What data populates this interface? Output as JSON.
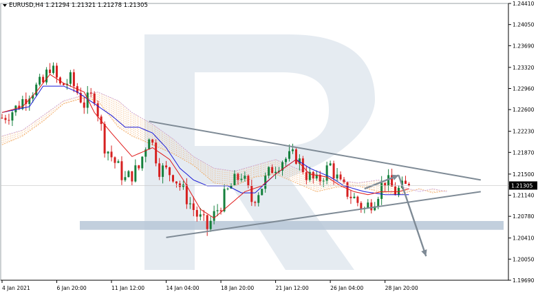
{
  "header": {
    "symbol": "EURUSD,H4",
    "ohlc": "1.21294 1.21321 1.21278 1.21305"
  },
  "chart_data": {
    "type": "candlestick",
    "symbol": "EURUSD",
    "timeframe": "H4",
    "price_axis": {
      "min": 1.1969,
      "max": 1.2441,
      "ticks": [
        "1.24410",
        "1.24050",
        "1.23690",
        "1.23320",
        "1.22960",
        "1.22600",
        "1.22230",
        "1.21870",
        "1.21500",
        "1.21140",
        "1.20780",
        "1.20410",
        "1.20050",
        "1.19690"
      ],
      "current_price": "1.21305"
    },
    "time_axis": {
      "labels": [
        "4 Jan 2021",
        "6 Jan 20:00",
        "11 Jan 12:00",
        "14 Jan 04:00",
        "18 Jan 20:00",
        "21 Jan 12:00",
        "26 Jan 04:00",
        "28 Jan 20:00"
      ],
      "label_bars": [
        0,
        16,
        32,
        48,
        64,
        80,
        96,
        112
      ]
    },
    "bar_count": 120,
    "close_path": [
      [
        0,
        1.2246
      ],
      [
        4,
        1.2262
      ],
      [
        8,
        1.229
      ],
      [
        12,
        1.2305
      ],
      [
        14,
        1.2335
      ],
      [
        17,
        1.23
      ],
      [
        20,
        1.231
      ],
      [
        24,
        1.227
      ],
      [
        27,
        1.2285
      ],
      [
        30,
        1.22
      ],
      [
        33,
        1.217
      ],
      [
        36,
        1.214
      ],
      [
        40,
        1.216
      ],
      [
        43,
        1.222
      ],
      [
        46,
        1.216
      ],
      [
        50,
        1.215
      ],
      [
        54,
        1.211
      ],
      [
        57,
        1.208
      ],
      [
        60,
        1.2058
      ],
      [
        63,
        1.209
      ],
      [
        67,
        1.213
      ],
      [
        70,
        1.215
      ],
      [
        73,
        1.2105
      ],
      [
        76,
        1.213
      ],
      [
        79,
        1.216
      ],
      [
        82,
        1.2175
      ],
      [
        86,
        1.218
      ],
      [
        89,
        1.215
      ],
      [
        92,
        1.2135
      ],
      [
        96,
        1.2165
      ],
      [
        99,
        1.213
      ],
      [
        103,
        1.2108
      ],
      [
        106,
        1.209
      ],
      [
        109,
        1.211
      ],
      [
        112,
        1.214
      ],
      [
        115,
        1.212
      ],
      [
        119,
        1.21305
      ]
    ],
    "tenkan_sen": [
      [
        0,
        1.2255
      ],
      [
        6,
        1.2265
      ],
      [
        10,
        1.229
      ],
      [
        14,
        1.232
      ],
      [
        18,
        1.2305
      ],
      [
        24,
        1.229
      ],
      [
        27,
        1.2255
      ],
      [
        32,
        1.222
      ],
      [
        38,
        1.218
      ],
      [
        44,
        1.2195
      ],
      [
        49,
        1.2175
      ],
      [
        53,
        1.214
      ],
      [
        58,
        1.209
      ],
      [
        62,
        1.2075
      ],
      [
        66,
        1.2095
      ],
      [
        71,
        1.212
      ],
      [
        76,
        1.213
      ],
      [
        80,
        1.215
      ],
      [
        86,
        1.2175
      ],
      [
        90,
        1.215
      ],
      [
        95,
        1.2145
      ],
      [
        99,
        1.213
      ],
      [
        103,
        1.212
      ],
      [
        107,
        1.2115
      ],
      [
        111,
        1.212
      ],
      [
        116,
        1.212
      ],
      [
        119,
        1.2125
      ]
    ],
    "kijun_sen": [
      [
        0,
        1.2255
      ],
      [
        8,
        1.2265
      ],
      [
        12,
        1.23
      ],
      [
        18,
        1.23
      ],
      [
        22,
        1.229
      ],
      [
        27,
        1.227
      ],
      [
        32,
        1.225
      ],
      [
        36,
        1.223
      ],
      [
        40,
        1.223
      ],
      [
        44,
        1.222
      ],
      [
        48,
        1.2195
      ],
      [
        52,
        1.216
      ],
      [
        56,
        1.214
      ],
      [
        60,
        1.213
      ],
      [
        66,
        1.213
      ],
      [
        70,
        1.2118
      ],
      [
        74,
        1.2118
      ],
      [
        80,
        1.215
      ],
      [
        86,
        1.2175
      ],
      [
        90,
        1.216
      ],
      [
        96,
        1.2145
      ],
      [
        100,
        1.213
      ],
      [
        106,
        1.212
      ],
      [
        112,
        1.2115
      ],
      [
        119,
        1.2115
      ]
    ],
    "cloud": {
      "span_a": [
        [
          0,
          1.22
        ],
        [
          6,
          1.2215
        ],
        [
          12,
          1.224
        ],
        [
          18,
          1.227
        ],
        [
          24,
          1.228
        ],
        [
          28,
          1.2275
        ],
        [
          34,
          1.223
        ],
        [
          38,
          1.2215
        ],
        [
          44,
          1.22
        ],
        [
          50,
          1.2185
        ],
        [
          56,
          1.2165
        ],
        [
          62,
          1.2135
        ],
        [
          68,
          1.213
        ],
        [
          74,
          1.2145
        ],
        [
          80,
          1.215
        ],
        [
          86,
          1.2135
        ],
        [
          92,
          1.212
        ],
        [
          98,
          1.2128
        ],
        [
          104,
          1.213
        ],
        [
          110,
          1.212
        ],
        [
          116,
          1.2115
        ],
        [
          122,
          1.2125
        ],
        [
          126,
          1.2118
        ],
        [
          130,
          1.2122
        ]
      ],
      "span_b": [
        [
          0,
          1.2215
        ],
        [
          6,
          1.2225
        ],
        [
          12,
          1.225
        ],
        [
          18,
          1.2275
        ],
        [
          24,
          1.2285
        ],
        [
          28,
          1.229
        ],
        [
          34,
          1.2275
        ],
        [
          38,
          1.2255
        ],
        [
          44,
          1.2235
        ],
        [
          50,
          1.221
        ],
        [
          56,
          1.218
        ],
        [
          62,
          1.216
        ],
        [
          68,
          1.2155
        ],
        [
          74,
          1.2165
        ],
        [
          80,
          1.2175
        ],
        [
          86,
          1.216
        ],
        [
          92,
          1.215
        ],
        [
          98,
          1.214
        ],
        [
          104,
          1.2135
        ],
        [
          110,
          1.214
        ],
        [
          116,
          1.213
        ],
        [
          122,
          1.212
        ],
        [
          126,
          1.2125
        ],
        [
          130,
          1.212
        ]
      ]
    },
    "drawings": {
      "triangle_upper": [
        [
          43,
          1.224
        ],
        [
          140,
          1.214
        ]
      ],
      "triangle_lower": [
        [
          48,
          1.2042
        ],
        [
          140,
          1.212
        ]
      ],
      "support_zone": [
        1.2055,
        1.207
      ],
      "arrow_up": [
        [
          106,
          1.2125
        ],
        [
          116,
          1.2148
        ]
      ],
      "arrow_down": [
        [
          116,
          1.2148
        ],
        [
          124,
          1.201
        ]
      ]
    },
    "colors": {
      "bull": "#15803d",
      "bear": "#d62020",
      "tenkan": "#e01818",
      "kijun": "#1a1ad6",
      "cloud_a": "#f0a050",
      "cloud_b": "#c7a0e0",
      "drawing": "#7e8a95",
      "zone": "#b7c7d7",
      "watermark": "#e5ebf1"
    }
  }
}
